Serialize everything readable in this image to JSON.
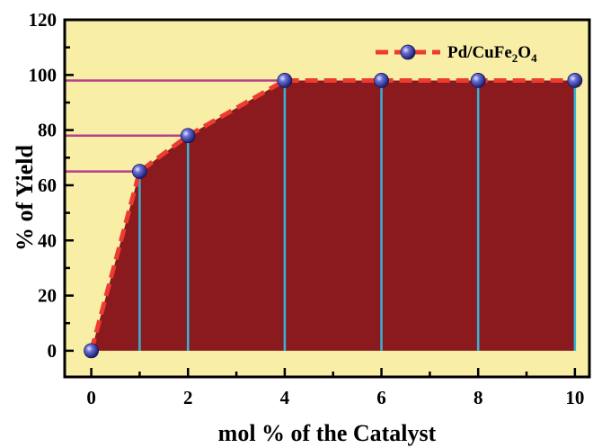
{
  "chart_data": {
    "type": "area",
    "xlabel": "mol % of the Catalyst",
    "ylabel": "% of Yield",
    "xlim": [
      -0.55,
      10.3
    ],
    "ylim": [
      -9.5,
      120
    ],
    "xticks": [
      0,
      2,
      4,
      6,
      8,
      10
    ],
    "yticks": [
      0,
      20,
      40,
      60,
      80,
      100,
      120
    ],
    "grid": false,
    "legend_position": "top-right",
    "series": [
      {
        "name": "Pd/CuFe2O4",
        "legend_parts": {
          "base": "Pd/CuFe",
          "sub1": "2",
          "mid": "O",
          "sub2": "4"
        },
        "x": [
          0,
          1,
          2,
          4,
          6,
          8,
          10
        ],
        "y": [
          0,
          65,
          78,
          98,
          98,
          98,
          98
        ]
      }
    ],
    "reference_lines": [
      65,
      78,
      98
    ],
    "colors": {
      "plot_background": "#f8eea6",
      "area_fill": "#8b1a1f",
      "dashed_line": "#ee3b30",
      "vertical_lines": "#34b4d8",
      "reference_lines": "#b8408a",
      "marker": "#3a3fa8"
    }
  }
}
